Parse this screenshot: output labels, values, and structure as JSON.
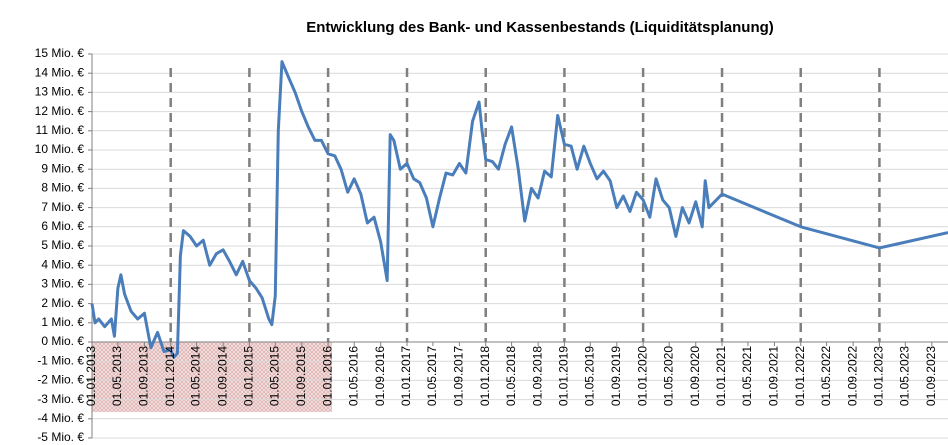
{
  "chart_data": {
    "type": "line",
    "title": "Entwicklung des Bank- und Kassenbestands (Liquiditätsplanung)",
    "xlim": [
      "01.01.2013",
      "15.11.2023"
    ],
    "xticks": [
      "01.01.2013",
      "01.05.2013",
      "01.09.2013",
      "01.01.2014",
      "01.05.2014",
      "01.09.2014",
      "01.01.2015",
      "01.05.2015",
      "01.09.2015",
      "01.01.2016",
      "01.05.2016",
      "01.09.2016",
      "01.01.2017",
      "01.05.2017",
      "01.09.2017",
      "01.01.2018",
      "01.05.2018",
      "01.09.2018",
      "01.01.2019",
      "01.05.2019",
      "01.09.2019",
      "01.01.2020",
      "01.05.2020",
      "01.09.2020",
      "01.01.2021",
      "01.05.2021",
      "01.09.2021",
      "01.01.2022",
      "01.05.2022",
      "01.09.2022",
      "01.01.2023",
      "01.05.2023",
      "01.09.2023"
    ],
    "ylim": [
      -5,
      15
    ],
    "yticks": [
      {
        "value": 15,
        "label": "15 Mio. €"
      },
      {
        "value": 14,
        "label": "14 Mio. €"
      },
      {
        "value": 13,
        "label": "13 Mio. €"
      },
      {
        "value": 12,
        "label": "12 Mio. €"
      },
      {
        "value": 11,
        "label": "11 Mio. €"
      },
      {
        "value": 10,
        "label": "10 Mio. €"
      },
      {
        "value": 9,
        "label": "9 Mio. €"
      },
      {
        "value": 8,
        "label": "8 Mio. €"
      },
      {
        "value": 7,
        "label": "7 Mio. €"
      },
      {
        "value": 6,
        "label": "6 Mio. €"
      },
      {
        "value": 5,
        "label": "5 Mio. €"
      },
      {
        "value": 4,
        "label": "4 Mio. €"
      },
      {
        "value": 3,
        "label": "3 Mio. €"
      },
      {
        "value": 2,
        "label": "2 Mio. €"
      },
      {
        "value": 1,
        "label": "1 Mio. €"
      },
      {
        "value": 0,
        "label": "0 Mio. €"
      },
      {
        "value": -1,
        "label": "-1 Mio. €"
      },
      {
        "value": -2,
        "label": "-2 Mio. €"
      },
      {
        "value": -3,
        "label": "-3 Mio. €"
      },
      {
        "value": -4,
        "label": "-4 Mio. €"
      },
      {
        "value": -5,
        "label": "-5 Mio. €"
      }
    ],
    "grid": true,
    "x": [
      "01.01.2013",
      "15.01.2013",
      "01.02.2013",
      "01.03.2013",
      "01.04.2013",
      "15.04.2013",
      "01.05.2013",
      "15.05.2013",
      "01.06.2013",
      "01.07.2013",
      "01.08.2013",
      "01.09.2013",
      "01.10.2013",
      "01.11.2013",
      "01.12.2013",
      "01.01.2014",
      "15.01.2014",
      "01.02.2014",
      "15.02.2014",
      "01.03.2014",
      "01.04.2014",
      "01.05.2014",
      "01.06.2014",
      "01.07.2014",
      "01.08.2014",
      "01.09.2014",
      "01.10.2014",
      "01.11.2014",
      "01.12.2014",
      "01.01.2015",
      "01.02.2015",
      "01.03.2015",
      "01.04.2015",
      "15.04.2015",
      "01.05.2015",
      "15.05.2015",
      "01.06.2015",
      "01.07.2015",
      "01.08.2015",
      "01.09.2015",
      "01.10.2015",
      "01.11.2015",
      "01.12.2015",
      "01.01.2016",
      "01.02.2016",
      "01.03.2016",
      "01.04.2016",
      "01.05.2016",
      "01.06.2016",
      "01.07.2016",
      "01.08.2016",
      "01.09.2016",
      "01.10.2016",
      "15.10.2016",
      "01.11.2016",
      "01.12.2016",
      "01.01.2017",
      "01.02.2017",
      "01.03.2017",
      "01.04.2017",
      "01.05.2017",
      "01.06.2017",
      "01.07.2017",
      "01.08.2017",
      "01.09.2017",
      "01.10.2017",
      "01.11.2017",
      "01.12.2017",
      "15.12.2017",
      "01.01.2018",
      "01.02.2018",
      "01.03.2018",
      "01.04.2018",
      "01.05.2018",
      "01.06.2018",
      "01.07.2018",
      "01.08.2018",
      "01.09.2018",
      "01.10.2018",
      "01.11.2018",
      "01.12.2018",
      "01.01.2019",
      "01.02.2019",
      "01.03.2019",
      "01.04.2019",
      "01.05.2019",
      "01.06.2019",
      "01.07.2019",
      "01.08.2019",
      "01.09.2019",
      "01.10.2019",
      "01.11.2019",
      "01.12.2019",
      "01.01.2020",
      "01.02.2020",
      "01.03.2020",
      "01.04.2020",
      "01.05.2020",
      "01.06.2020",
      "01.07.2020",
      "01.08.2020",
      "01.09.2020",
      "01.10.2020",
      "15.10.2020",
      "01.11.2020",
      "01.01.2021",
      "01.01.2022",
      "01.01.2023",
      "15.11.2023"
    ],
    "series": [
      {
        "name": "Bank- und Kassenbestand",
        "color": "#4a7ebb",
        "values": [
          2.0,
          1.0,
          1.2,
          0.8,
          1.2,
          0.3,
          2.8,
          3.5,
          2.5,
          1.6,
          1.2,
          1.5,
          -0.3,
          0.5,
          -0.5,
          -0.4,
          -0.8,
          -0.6,
          4.5,
          5.8,
          5.5,
          5.0,
          5.3,
          4.0,
          4.6,
          4.8,
          4.2,
          3.5,
          4.2,
          3.2,
          2.8,
          2.3,
          1.2,
          0.9,
          2.4,
          11.0,
          14.6,
          13.8,
          13.0,
          12.0,
          11.2,
          10.5,
          10.5,
          9.8,
          9.7,
          9.0,
          7.8,
          8.5,
          7.7,
          6.2,
          6.5,
          5.2,
          3.2,
          10.8,
          10.5,
          9.0,
          9.3,
          8.5,
          8.3,
          7.5,
          6.0,
          7.5,
          8.8,
          8.7,
          9.3,
          8.8,
          11.5,
          12.5,
          11.0,
          9.5,
          9.4,
          9.0,
          10.3,
          11.2,
          9.0,
          6.3,
          8.0,
          7.5,
          8.9,
          8.6,
          11.8,
          10.3,
          10.2,
          9.0,
          10.2,
          9.3,
          8.5,
          8.9,
          8.4,
          7.0,
          7.6,
          6.8,
          7.8,
          7.4,
          6.5,
          8.5,
          7.4,
          7.0,
          5.5,
          7.0,
          6.2,
          7.3,
          6.0,
          8.4,
          7.0,
          7.7,
          6.0,
          4.9,
          5.7
        ]
      }
    ]
  }
}
